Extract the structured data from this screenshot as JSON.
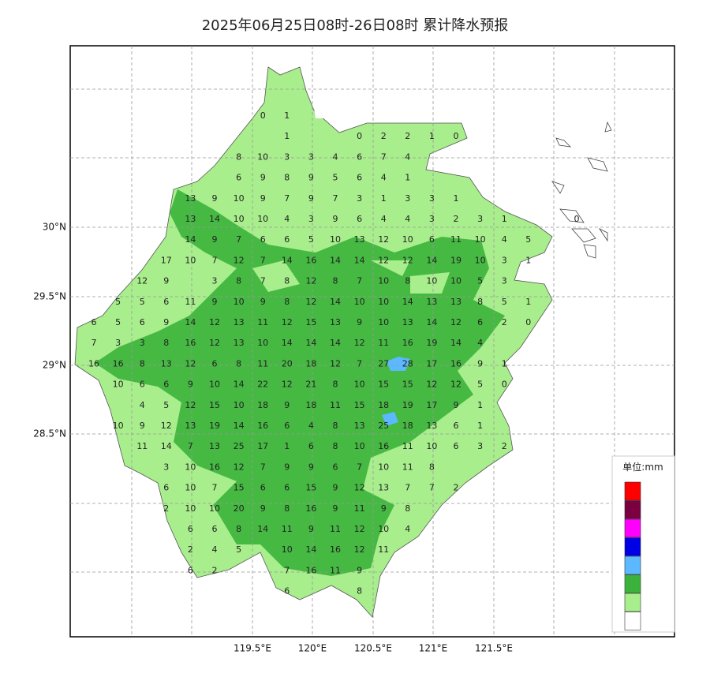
{
  "title": "2025年06月25日08时-26日08时 累计降水预报",
  "lon_labels": [
    "119.5°E",
    "120°E",
    "120.5°E",
    "121°E",
    "121.5°E"
  ],
  "lat_labels": [
    "30°N",
    "29.5°N",
    "29°N",
    "28.5°N"
  ],
  "legend": {
    "unit": "单位:mm",
    "colors": [
      "#ff0000",
      "#7a0040",
      "#ff00ff",
      "#0000e6",
      "#5cb8ff",
      "#3bb23b",
      "#a8ee8c",
      "#ffffff"
    ]
  },
  "grid": {
    "rows": [
      [
        null,
        null,
        null,
        null,
        null,
        null,
        null,
        0,
        1,
        null,
        null,
        null,
        null,
        null,
        null,
        null,
        null,
        null,
        null,
        null,
        null
      ],
      [
        null,
        null,
        null,
        null,
        null,
        null,
        null,
        null,
        1,
        null,
        null,
        0,
        2,
        2,
        1,
        0,
        null,
        null,
        null,
        null,
        null
      ],
      [
        null,
        null,
        null,
        null,
        null,
        null,
        8,
        10,
        3,
        3,
        4,
        6,
        7,
        4,
        null,
        null,
        null,
        null,
        null,
        null,
        null
      ],
      [
        null,
        null,
        null,
        null,
        null,
        null,
        6,
        9,
        8,
        9,
        5,
        6,
        4,
        1,
        null,
        null,
        null,
        null,
        null,
        null,
        null
      ],
      [
        null,
        null,
        null,
        null,
        13,
        9,
        10,
        9,
        7,
        9,
        7,
        3,
        1,
        3,
        3,
        1,
        null,
        null,
        null,
        null,
        null
      ],
      [
        null,
        null,
        null,
        null,
        13,
        14,
        10,
        10,
        4,
        3,
        9,
        6,
        4,
        4,
        3,
        2,
        3,
        1,
        null,
        null,
        0
      ],
      [
        null,
        null,
        null,
        null,
        14,
        9,
        7,
        6,
        6,
        5,
        10,
        13,
        12,
        10,
        6,
        11,
        10,
        4,
        5,
        null,
        null
      ],
      [
        null,
        null,
        null,
        17,
        10,
        7,
        12,
        7,
        14,
        16,
        14,
        14,
        12,
        12,
        14,
        19,
        10,
        3,
        1,
        null,
        null
      ],
      [
        null,
        null,
        12,
        9,
        null,
        3,
        8,
        7,
        8,
        12,
        8,
        7,
        10,
        8,
        10,
        10,
        5,
        3,
        null,
        null,
        null
      ],
      [
        null,
        5,
        5,
        6,
        11,
        9,
        10,
        9,
        8,
        12,
        14,
        10,
        10,
        14,
        13,
        13,
        8,
        5,
        1,
        null,
        null
      ],
      [
        6,
        5,
        6,
        9,
        14,
        12,
        13,
        11,
        12,
        15,
        13,
        9,
        10,
        13,
        14,
        12,
        6,
        2,
        0,
        null,
        null
      ],
      [
        7,
        3,
        3,
        8,
        16,
        12,
        13,
        10,
        14,
        14,
        14,
        12,
        11,
        16,
        19,
        14,
        4,
        null,
        null,
        null,
        null
      ],
      [
        16,
        16,
        8,
        13,
        12,
        6,
        8,
        11,
        20,
        18,
        12,
        7,
        27,
        28,
        17,
        16,
        9,
        1,
        null,
        null,
        null
      ],
      [
        null,
        10,
        6,
        6,
        9,
        10,
        14,
        22,
        12,
        21,
        8,
        10,
        15,
        15,
        12,
        12,
        5,
        0,
        null,
        null,
        null
      ],
      [
        null,
        null,
        4,
        5,
        12,
        15,
        10,
        18,
        9,
        18,
        11,
        15,
        18,
        19,
        17,
        9,
        1,
        null,
        null,
        null,
        null
      ],
      [
        null,
        10,
        9,
        12,
        13,
        19,
        14,
        16,
        6,
        4,
        8,
        13,
        25,
        18,
        13,
        6,
        1,
        null,
        null,
        null,
        null
      ],
      [
        null,
        null,
        11,
        14,
        7,
        13,
        25,
        17,
        1,
        6,
        8,
        10,
        16,
        11,
        10,
        6,
        3,
        2,
        null,
        null,
        null
      ],
      [
        null,
        null,
        null,
        3,
        10,
        16,
        12,
        7,
        9,
        9,
        6,
        7,
        10,
        11,
        8,
        null,
        null,
        null,
        null,
        null,
        null
      ],
      [
        null,
        null,
        null,
        6,
        10,
        7,
        15,
        6,
        6,
        15,
        9,
        12,
        13,
        7,
        7,
        2,
        null,
        null,
        null,
        null,
        null
      ],
      [
        null,
        null,
        null,
        2,
        10,
        10,
        20,
        9,
        8,
        16,
        9,
        11,
        9,
        8,
        null,
        null,
        null,
        null,
        null,
        null,
        null
      ],
      [
        null,
        null,
        null,
        null,
        6,
        6,
        8,
        14,
        11,
        9,
        11,
        12,
        10,
        4,
        null,
        null,
        null,
        null,
        null,
        null,
        null
      ],
      [
        null,
        null,
        null,
        null,
        2,
        4,
        5,
        null,
        10,
        14,
        16,
        12,
        11,
        null,
        null,
        null,
        null,
        null,
        null,
        null,
        null
      ],
      [
        null,
        null,
        null,
        null,
        6,
        2,
        null,
        null,
        7,
        16,
        11,
        9,
        null,
        null,
        null,
        null,
        null,
        null,
        null,
        null,
        null
      ],
      [
        null,
        null,
        null,
        null,
        null,
        null,
        null,
        null,
        6,
        null,
        null,
        8,
        null,
        null,
        null,
        null,
        null,
        null,
        null,
        null,
        null
      ]
    ]
  }
}
